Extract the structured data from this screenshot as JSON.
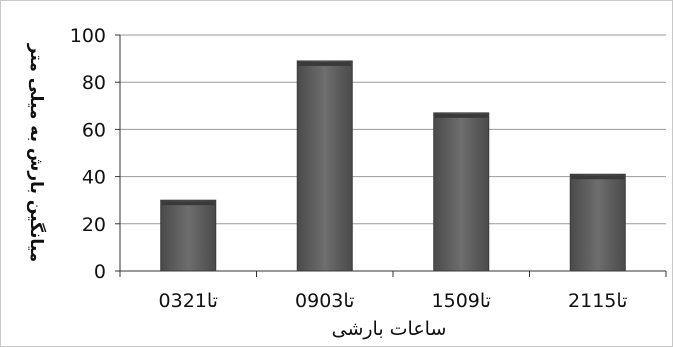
{
  "chart_data": {
    "type": "bar",
    "categories": [
      "03تا21",
      "09تا03",
      "15تا09",
      "21تا15"
    ],
    "values": [
      30,
      89,
      67,
      41
    ],
    "xlabel": "ساعات بارشی",
    "ylabel": "میانگین بارش به میلی متر",
    "ylim": [
      0,
      100
    ],
    "yticks": [
      0,
      20,
      40,
      60,
      80,
      100
    ],
    "grid": true,
    "legend": "none",
    "colors": {
      "bar": "#5f5f5f",
      "bar_top": "#3a3a3a",
      "grid": "#9a9a9a",
      "axis": "#333333"
    }
  }
}
